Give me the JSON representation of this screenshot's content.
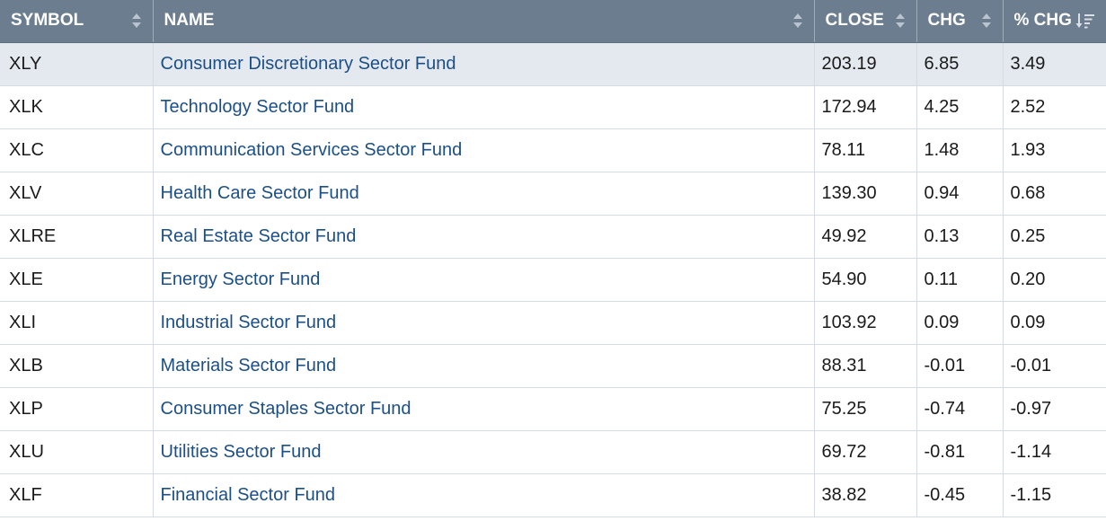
{
  "columns": {
    "symbol": "SYMBOL",
    "name": "NAME",
    "close": "CLOSE",
    "chg": "CHG",
    "pct_chg": "% CHG"
  },
  "sort": {
    "column": "% CHG",
    "direction": "descending"
  },
  "colors": {
    "header_bg": "#6b7d8f",
    "link": "#1c4f86",
    "highlight_row": "#e4e9ef"
  },
  "rows": [
    {
      "symbol": "XLY",
      "name": "Consumer Discretionary Sector Fund",
      "close": "203.19",
      "chg": "6.85",
      "pct_chg": "3.49"
    },
    {
      "symbol": "XLK",
      "name": "Technology Sector Fund",
      "close": "172.94",
      "chg": "4.25",
      "pct_chg": "2.52"
    },
    {
      "symbol": "XLC",
      "name": "Communication Services Sector Fund",
      "close": "78.11",
      "chg": "1.48",
      "pct_chg": "1.93"
    },
    {
      "symbol": "XLV",
      "name": "Health Care Sector Fund",
      "close": "139.30",
      "chg": "0.94",
      "pct_chg": "0.68"
    },
    {
      "symbol": "XLRE",
      "name": "Real Estate Sector Fund",
      "close": "49.92",
      "chg": "0.13",
      "pct_chg": "0.25"
    },
    {
      "symbol": "XLE",
      "name": "Energy Sector Fund",
      "close": "54.90",
      "chg": "0.11",
      "pct_chg": "0.20"
    },
    {
      "symbol": "XLI",
      "name": "Industrial Sector Fund",
      "close": "103.92",
      "chg": "0.09",
      "pct_chg": "0.09"
    },
    {
      "symbol": "XLB",
      "name": "Materials Sector Fund",
      "close": "88.31",
      "chg": "-0.01",
      "pct_chg": "-0.01"
    },
    {
      "symbol": "XLP",
      "name": "Consumer Staples Sector Fund",
      "close": "75.25",
      "chg": "-0.74",
      "pct_chg": "-0.97"
    },
    {
      "symbol": "XLU",
      "name": "Utilities Sector Fund",
      "close": "69.72",
      "chg": "-0.81",
      "pct_chg": "-1.14"
    },
    {
      "symbol": "XLF",
      "name": "Financial Sector Fund",
      "close": "38.82",
      "chg": "-0.45",
      "pct_chg": "-1.15"
    }
  ]
}
